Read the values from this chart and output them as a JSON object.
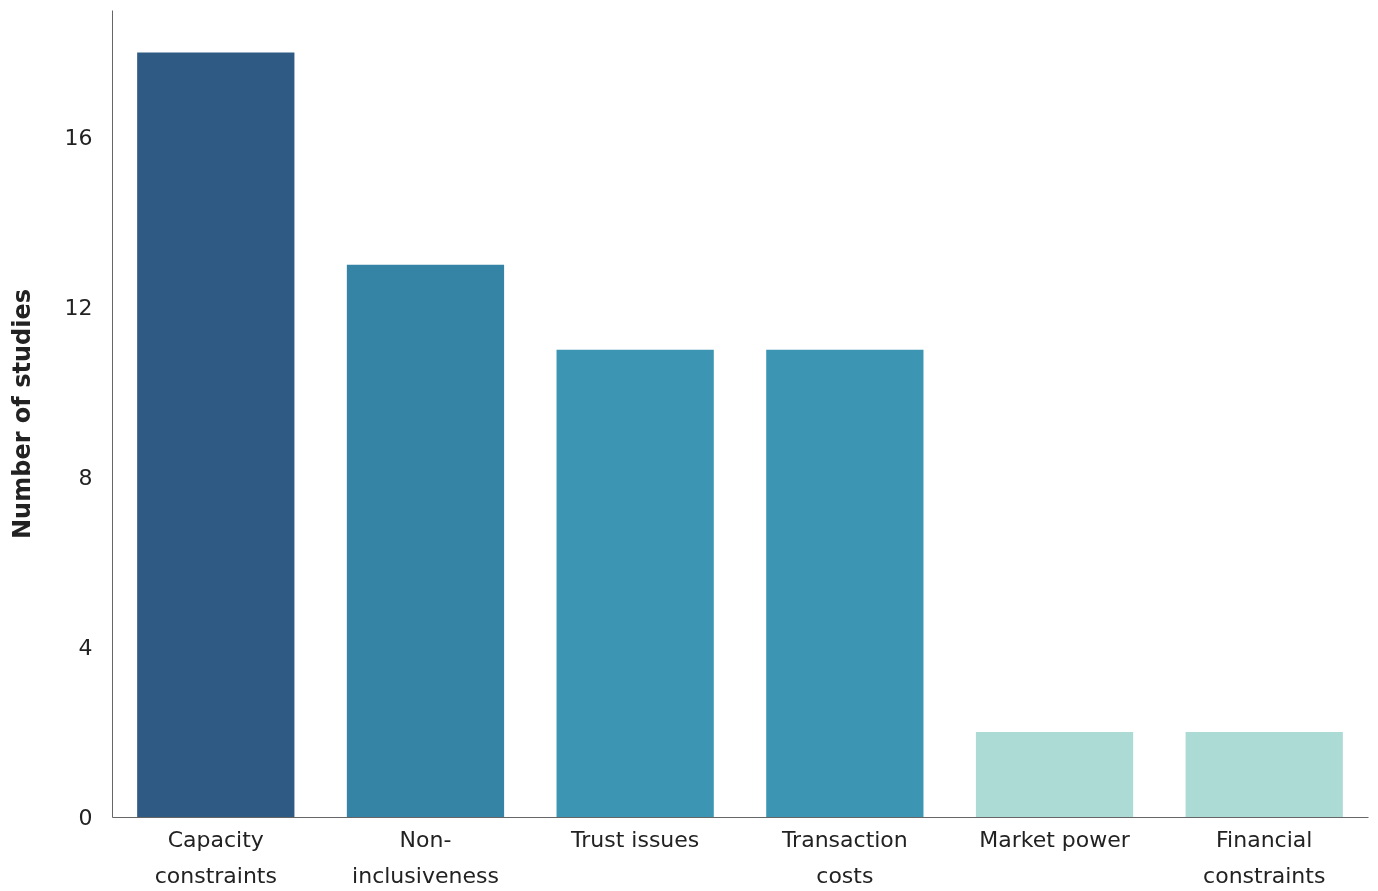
{
  "chart_data": {
    "type": "bar",
    "ylabel": "Number of studies",
    "categories": [
      "Capacity constraints",
      "Non-inclusiveness",
      "Trust issues",
      "Transaction costs",
      "Market power",
      "Financial constraints"
    ],
    "values": [
      18,
      13,
      11,
      11,
      2,
      2
    ],
    "colors": [
      "#2e5a84",
      "#3584a5",
      "#3c95b3",
      "#3c95b3",
      "#acdad5",
      "#acdad5"
    ],
    "ylim": [
      0,
      19
    ],
    "yticks": [
      0,
      4,
      8,
      12,
      16
    ],
    "grid": false
  }
}
